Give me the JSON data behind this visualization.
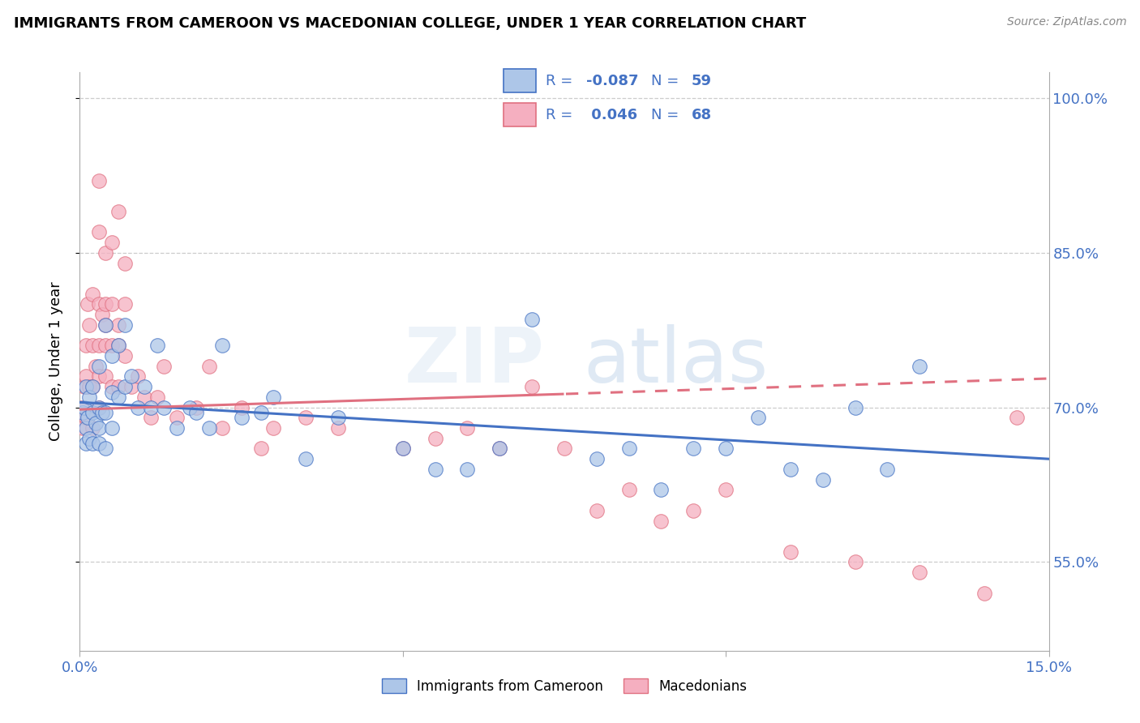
{
  "title": "IMMIGRANTS FROM CAMEROON VS MACEDONIAN COLLEGE, UNDER 1 YEAR CORRELATION CHART",
  "source": "Source: ZipAtlas.com",
  "ylabel": "College, Under 1 year",
  "legend_label_blue": "Immigrants from Cameroon",
  "legend_label_pink": "Macedonians",
  "r_blue": "-0.087",
  "n_blue": "59",
  "r_pink": "0.046",
  "n_pink": "68",
  "xmin": 0.0,
  "xmax": 0.15,
  "ymin": 0.464,
  "ymax": 1.025,
  "yticks": [
    0.55,
    0.7,
    0.85,
    1.0
  ],
  "yticklabels": [
    "55.0%",
    "70.0%",
    "85.0%",
    "100.0%"
  ],
  "xtick_left": "0.0%",
  "xtick_right": "15.0%",
  "color_blue": "#adc6e8",
  "color_pink": "#f5afc0",
  "line_color_blue": "#4472c4",
  "line_color_pink": "#e07080",
  "legend_text_color": "#4472c4",
  "watermark_color": "#d8e4f0",
  "blue_line_y0": 0.705,
  "blue_line_y1": 0.65,
  "pink_line_y0": 0.698,
  "pink_line_y1": 0.728,
  "pink_solid_xend": 0.075,
  "blue_x": [
    0.0005,
    0.0007,
    0.001,
    0.001,
    0.001,
    0.0012,
    0.0015,
    0.0015,
    0.002,
    0.002,
    0.002,
    0.0025,
    0.003,
    0.003,
    0.003,
    0.003,
    0.0035,
    0.004,
    0.004,
    0.004,
    0.005,
    0.005,
    0.005,
    0.006,
    0.006,
    0.007,
    0.007,
    0.008,
    0.009,
    0.01,
    0.011,
    0.012,
    0.013,
    0.015,
    0.017,
    0.018,
    0.02,
    0.022,
    0.025,
    0.028,
    0.03,
    0.035,
    0.04,
    0.05,
    0.055,
    0.06,
    0.065,
    0.07,
    0.08,
    0.085,
    0.09,
    0.095,
    0.1,
    0.105,
    0.11,
    0.115,
    0.12,
    0.125,
    0.13
  ],
  "blue_y": [
    0.695,
    0.7,
    0.68,
    0.665,
    0.72,
    0.69,
    0.67,
    0.71,
    0.695,
    0.665,
    0.72,
    0.685,
    0.74,
    0.68,
    0.665,
    0.7,
    0.695,
    0.78,
    0.695,
    0.66,
    0.75,
    0.715,
    0.68,
    0.76,
    0.71,
    0.78,
    0.72,
    0.73,
    0.7,
    0.72,
    0.7,
    0.76,
    0.7,
    0.68,
    0.7,
    0.695,
    0.68,
    0.76,
    0.69,
    0.695,
    0.71,
    0.65,
    0.69,
    0.66,
    0.64,
    0.64,
    0.66,
    0.785,
    0.65,
    0.66,
    0.62,
    0.66,
    0.66,
    0.69,
    0.64,
    0.63,
    0.7,
    0.64,
    0.74
  ],
  "pink_x": [
    0.0003,
    0.0005,
    0.0007,
    0.001,
    0.001,
    0.001,
    0.0012,
    0.0015,
    0.0015,
    0.002,
    0.002,
    0.002,
    0.002,
    0.0025,
    0.003,
    0.003,
    0.003,
    0.003,
    0.0035,
    0.004,
    0.004,
    0.004,
    0.004,
    0.005,
    0.005,
    0.005,
    0.006,
    0.006,
    0.006,
    0.007,
    0.007,
    0.008,
    0.009,
    0.01,
    0.011,
    0.012,
    0.013,
    0.015,
    0.018,
    0.02,
    0.022,
    0.025,
    0.028,
    0.03,
    0.035,
    0.04,
    0.05,
    0.055,
    0.06,
    0.065,
    0.07,
    0.075,
    0.08,
    0.085,
    0.09,
    0.095,
    0.1,
    0.11,
    0.12,
    0.13,
    0.14,
    0.145,
    0.003,
    0.003,
    0.004,
    0.005,
    0.006,
    0.007
  ],
  "pink_y": [
    0.7,
    0.68,
    0.72,
    0.76,
    0.73,
    0.69,
    0.8,
    0.78,
    0.72,
    0.81,
    0.76,
    0.72,
    0.68,
    0.74,
    0.76,
    0.8,
    0.73,
    0.7,
    0.79,
    0.78,
    0.73,
    0.8,
    0.76,
    0.72,
    0.76,
    0.8,
    0.78,
    0.76,
    0.72,
    0.8,
    0.75,
    0.72,
    0.73,
    0.71,
    0.69,
    0.71,
    0.74,
    0.69,
    0.7,
    0.74,
    0.68,
    0.7,
    0.66,
    0.68,
    0.69,
    0.68,
    0.66,
    0.67,
    0.68,
    0.66,
    0.72,
    0.66,
    0.6,
    0.62,
    0.59,
    0.6,
    0.62,
    0.56,
    0.55,
    0.54,
    0.52,
    0.69,
    0.87,
    0.92,
    0.85,
    0.86,
    0.89,
    0.84
  ]
}
